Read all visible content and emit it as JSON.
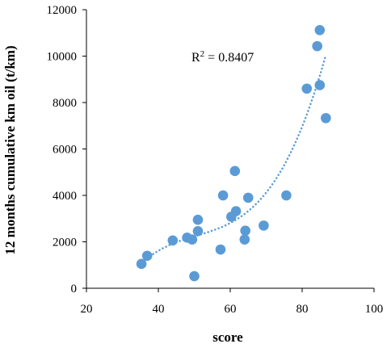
{
  "chart_data": {
    "type": "scatter",
    "title": "",
    "xlabel": "score",
    "ylabel": "12 months cumulative km oil (t/km)",
    "xlim": [
      20,
      100
    ],
    "ylim": [
      0,
      12000
    ],
    "x_ticks": [
      20,
      40,
      60,
      80,
      100
    ],
    "y_ticks": [
      0,
      2000,
      4000,
      6000,
      8000,
      10000,
      12000
    ],
    "grid": false,
    "marker_color": "#5B9BD5",
    "trendline": {
      "type": "polynomial",
      "style": "dotted",
      "color": "#5B9BD5"
    },
    "annotation": {
      "text": "R",
      "superscript": "2",
      "value": " = 0.8407"
    },
    "series": [
      {
        "values": [
          [
            35.3,
            1050
          ],
          [
            36.9,
            1400
          ],
          [
            44.0,
            2060
          ],
          [
            48.0,
            2180
          ],
          [
            49.4,
            2100
          ],
          [
            50.0,
            520
          ],
          [
            51.0,
            2460
          ],
          [
            51.0,
            2950
          ],
          [
            57.3,
            1670
          ],
          [
            58.0,
            4000
          ],
          [
            60.3,
            3080
          ],
          [
            61.3,
            5050
          ],
          [
            61.6,
            3320
          ],
          [
            64.0,
            2100
          ],
          [
            64.2,
            2480
          ],
          [
            65.0,
            3900
          ],
          [
            69.3,
            2700
          ],
          [
            75.6,
            4000
          ],
          [
            81.3,
            8600
          ],
          [
            84.2,
            10430
          ],
          [
            84.9,
            8750
          ],
          [
            84.9,
            11120
          ],
          [
            86.6,
            7330
          ]
        ]
      }
    ]
  }
}
